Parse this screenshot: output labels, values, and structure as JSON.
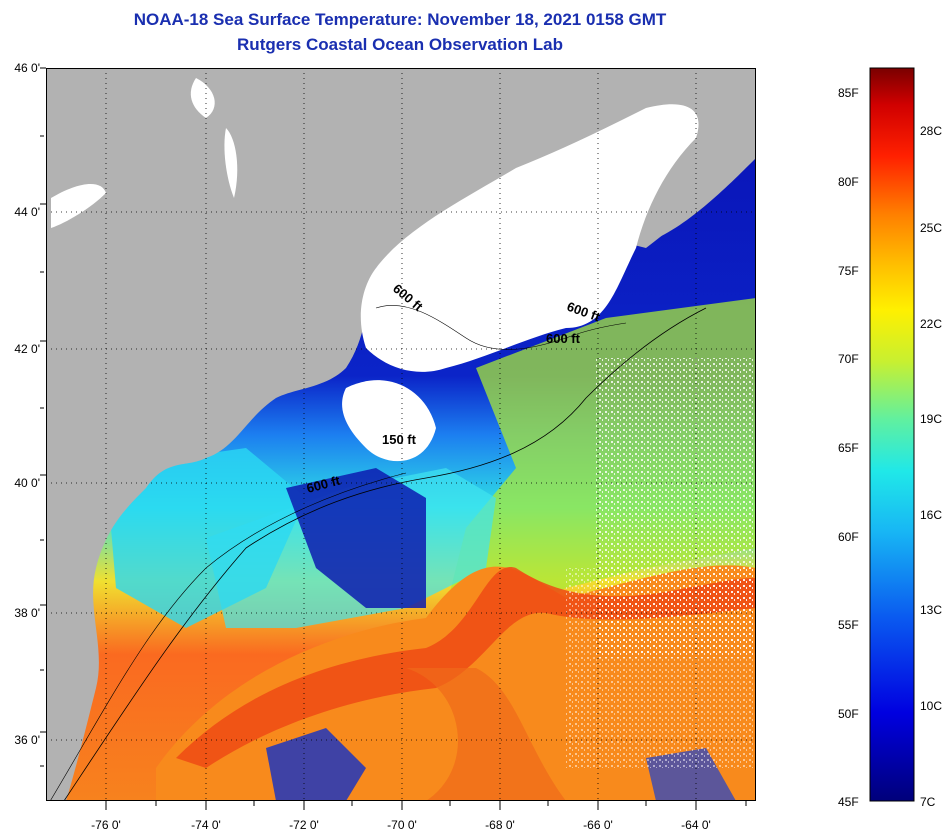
{
  "title_line1": "NOAA-18 Sea Surface Temperature:  November 18, 2021 0158 GMT",
  "title_line2": "Rutgers Coastal Ocean Observation Lab",
  "lat_labels": [
    "46 0'",
    "44 0'",
    "42 0'",
    "40 0'",
    "38 0'",
    "36 0'"
  ],
  "lon_labels": [
    "-76 0'",
    "-74 0'",
    "-72 0'",
    "-70 0'",
    "-68 0'",
    "-66 0'",
    "-64 0'"
  ],
  "depth_labels": [
    "600 ft",
    "600 ft",
    "600 ft",
    "150 ft",
    "600 ft"
  ],
  "colorbar": {
    "fahrenheit": [
      "85F",
      "80F",
      "75F",
      "70F",
      "65F",
      "60F",
      "55F",
      "50F",
      "45F"
    ],
    "celsius": [
      "28C",
      "25C",
      "22C",
      "19C",
      "16C",
      "13C",
      "10C",
      "7C"
    ]
  },
  "colors": {
    "land": "#b2b2b2",
    "cloud": "#ffffff",
    "title": "#1a2fb0"
  }
}
